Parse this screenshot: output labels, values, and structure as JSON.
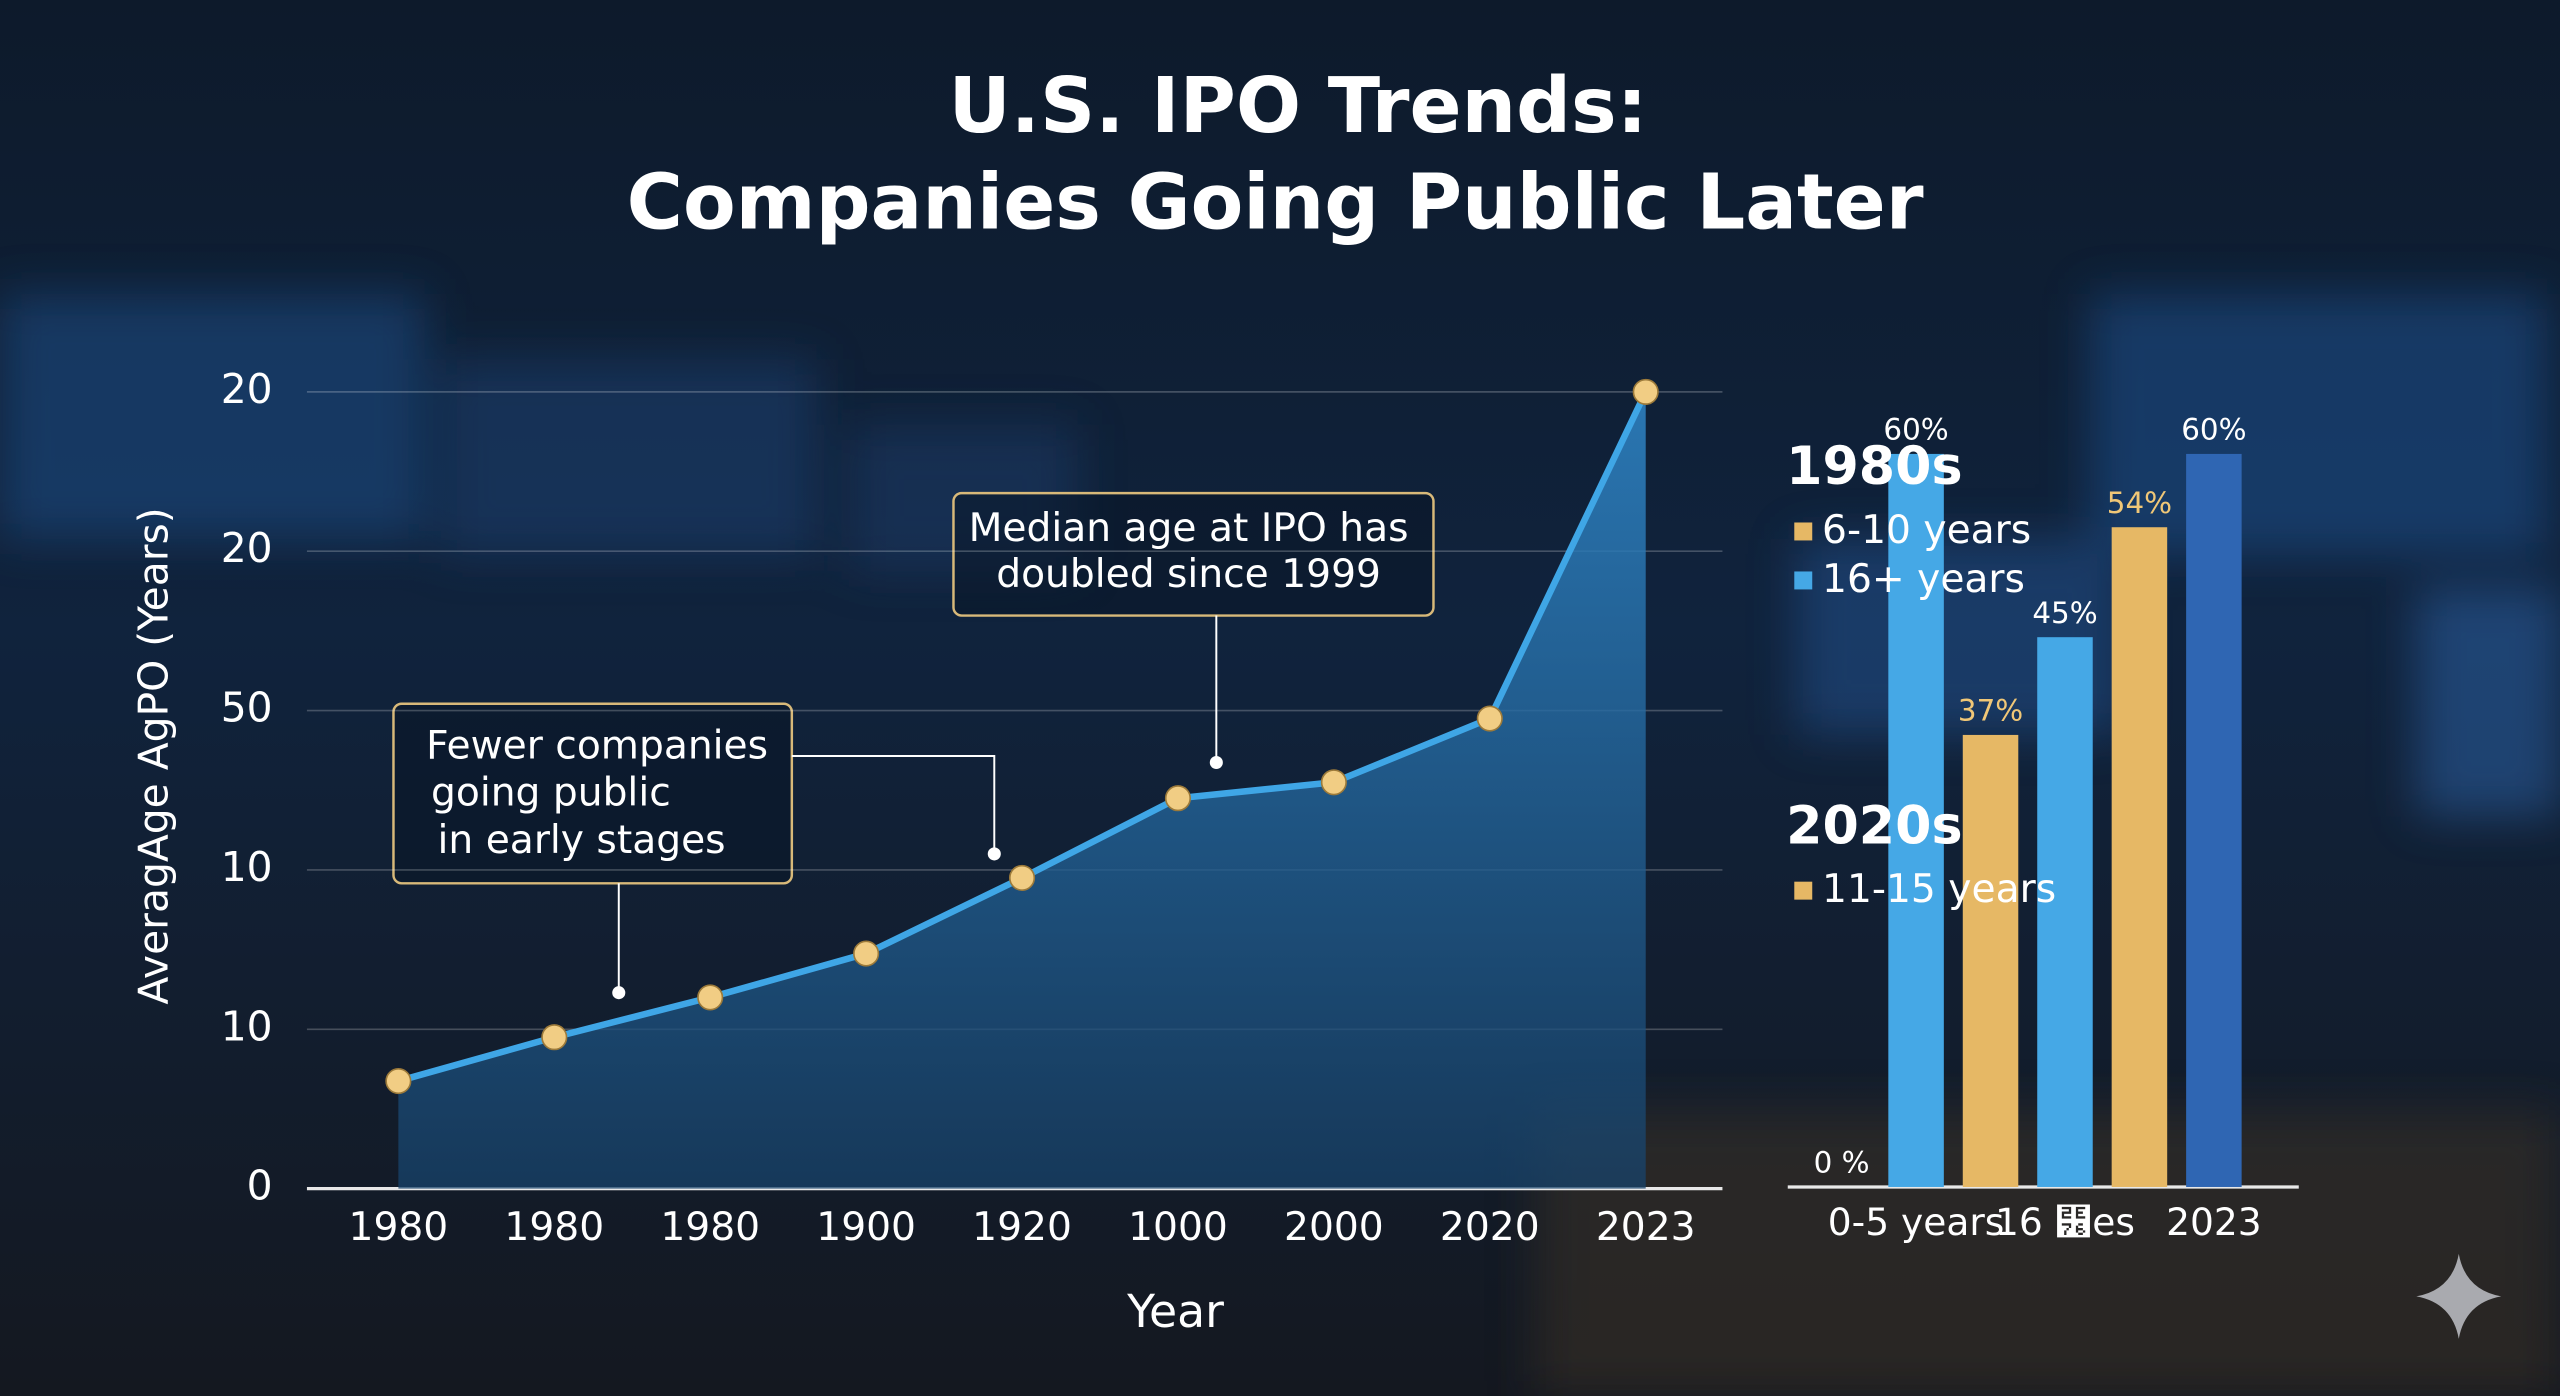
{
  "chart_data": [
    {
      "type": "line",
      "title": [
        "U.S. IPO Trends:",
        "Companies Going Public Later"
      ],
      "ylabel": "AveragAge AgPO (Years)",
      "xlabel": "Year",
      "categories": [
        "1980",
        "1980",
        "1980",
        "1900",
        "1920",
        "1000",
        "2000",
        "2020",
        "2023"
      ],
      "values": [
        2.7,
        3.8,
        4.8,
        5.9,
        7.8,
        9.8,
        10.2,
        11.8,
        20
      ],
      "color": "#3fa6e6",
      "marker_color": "#f1cd84",
      "ylim": [
        0,
        20
      ],
      "yticks": [
        0,
        {
          "value": 4,
          "label": "10"
        },
        {
          "value": 8,
          "label": "10"
        },
        {
          "value": 12,
          "label": "50"
        },
        {
          "value": 16,
          "label": "20"
        },
        {
          "value": 20,
          "label": "20"
        }
      ],
      "grid": true,
      "annotations": [
        {
          "lines": [
            "Median age at IPO has",
            "doubled since 1999"
          ]
        },
        {
          "lines": [
            "Fewer companies",
            "going public",
            "in early stages"
          ]
        }
      ]
    },
    {
      "type": "bar",
      "categories": [
        null,
        "0-5 years",
        null,
        "16 ⹶es",
        null,
        "2023"
      ],
      "values": [
        0,
        60,
        37,
        45,
        54,
        60
      ],
      "value_labels": [
        "0 %",
        "60%",
        "37%",
        "45%",
        "54%",
        "60%"
      ],
      "colors": [
        "#3f8fd6",
        "#45a8e6",
        "#e6b865",
        "#45a8e6",
        "#e6b865",
        "#2f66b3"
      ],
      "legend": [
        {
          "title": "1980s",
          "items": [
            {
              "label": "6-10 years",
              "color": "#e6b865"
            },
            {
              "label": "16+ years",
              "color": "#45a8e6"
            }
          ]
        },
        {
          "title": "2020s",
          "items": [
            {
              "label": "11-15 years",
              "color": "#e6b865"
            }
          ]
        }
      ]
    }
  ]
}
